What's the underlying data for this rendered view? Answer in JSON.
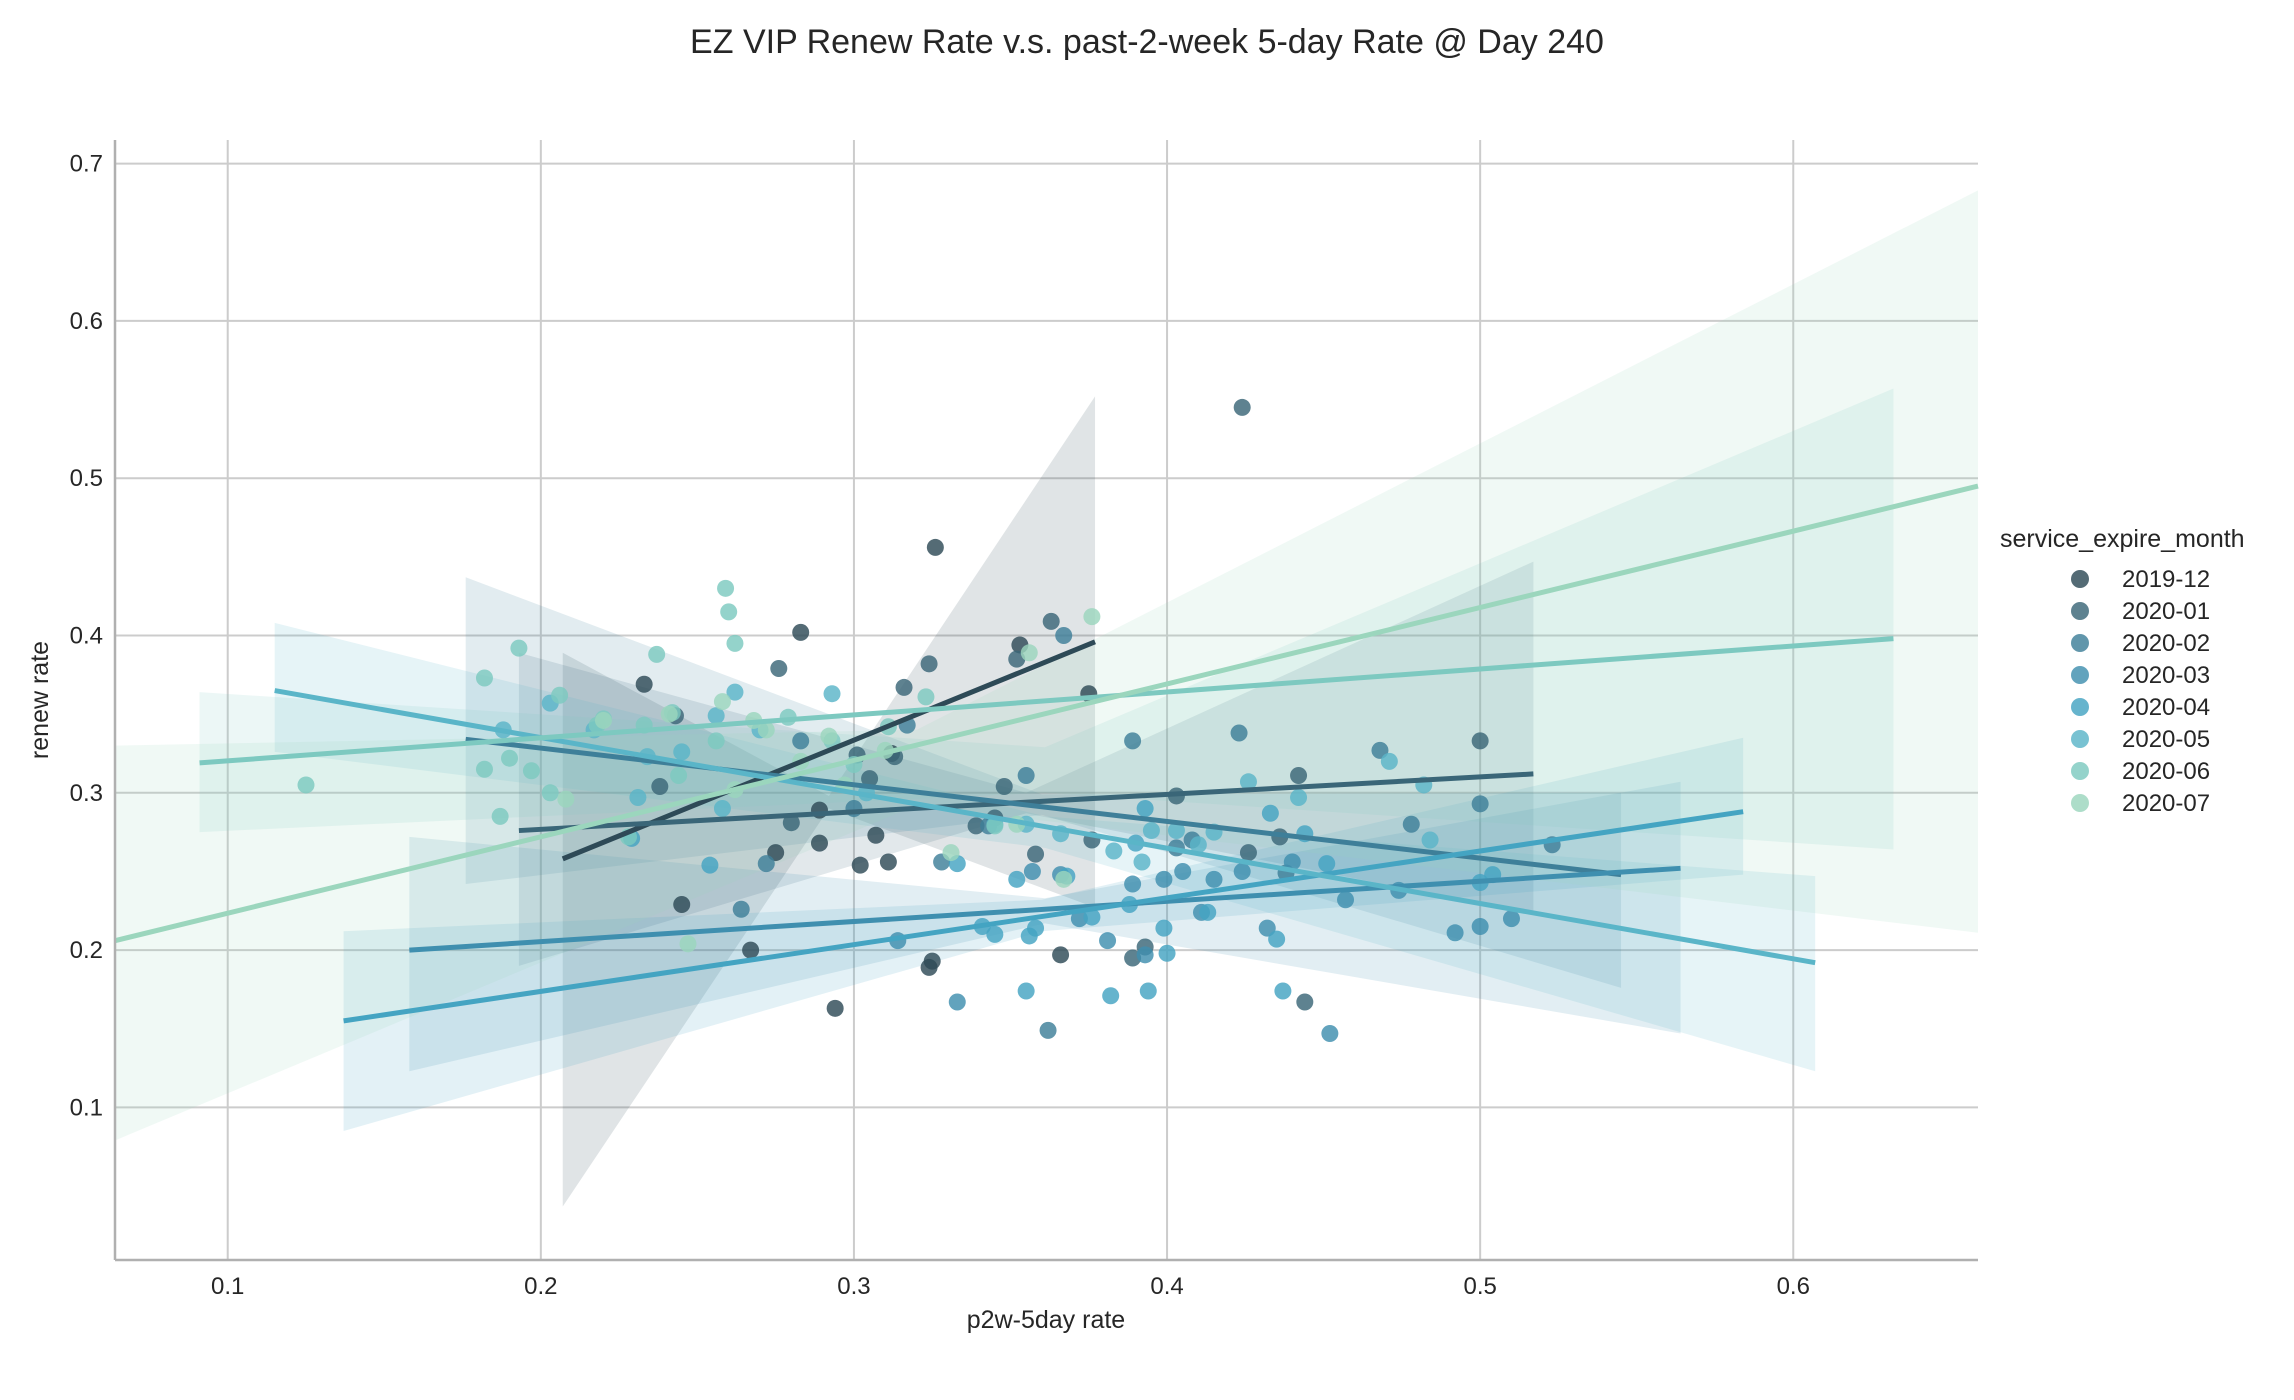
{
  "chart_data": {
    "type": "scatter",
    "title": "EZ VIP Renew Rate v.s. past-2-week 5-day Rate @ Day 240",
    "xlabel": "p2w-5day rate",
    "ylabel": "renew rate",
    "xlim": [
      0.064,
      0.659
    ],
    "ylim": [
      0.003,
      0.715
    ],
    "xticks": [
      "0.1",
      "0.2",
      "0.3",
      "0.4",
      "0.5",
      "0.6"
    ],
    "yticks": [
      "0.1",
      "0.2",
      "0.3",
      "0.4",
      "0.5",
      "0.6",
      "0.7"
    ],
    "grid": true,
    "legend": {
      "title": "service_expire_month",
      "position": "right"
    },
    "series": [
      {
        "name": "2019-12",
        "color": "#2e4a57",
        "points": [
          [
            0.233,
            0.369
          ],
          [
            0.245,
            0.229
          ],
          [
            0.267,
            0.2
          ],
          [
            0.275,
            0.262
          ],
          [
            0.283,
            0.402
          ],
          [
            0.289,
            0.289
          ],
          [
            0.289,
            0.268
          ],
          [
            0.294,
            0.163
          ],
          [
            0.302,
            0.254
          ],
          [
            0.307,
            0.273
          ],
          [
            0.311,
            0.256
          ],
          [
            0.312,
            0.325
          ],
          [
            0.324,
            0.189
          ],
          [
            0.325,
            0.193
          ],
          [
            0.326,
            0.456
          ],
          [
            0.353,
            0.394
          ],
          [
            0.366,
            0.197
          ],
          [
            0.375,
            0.363
          ]
        ],
        "fit": {
          "x": [
            0.207,
            0.377
          ],
          "y": [
            0.258,
            0.396
          ]
        },
        "ci": {
          "x": [
            0.207,
            0.292,
            0.377
          ],
          "lower": [
            0.037,
            0.29,
            0.227
          ],
          "upper": [
            0.389,
            0.298,
            0.552
          ]
        }
      },
      {
        "name": "2020-01",
        "color": "#3a6678",
        "points": [
          [
            0.238,
            0.304
          ],
          [
            0.243,
            0.349
          ],
          [
            0.276,
            0.379
          ],
          [
            0.28,
            0.281
          ],
          [
            0.301,
            0.324
          ],
          [
            0.305,
            0.309
          ],
          [
            0.313,
            0.323
          ],
          [
            0.316,
            0.367
          ],
          [
            0.324,
            0.382
          ],
          [
            0.339,
            0.279
          ],
          [
            0.345,
            0.284
          ],
          [
            0.348,
            0.304
          ],
          [
            0.352,
            0.385
          ],
          [
            0.358,
            0.261
          ],
          [
            0.363,
            0.409
          ],
          [
            0.376,
            0.27
          ],
          [
            0.389,
            0.195
          ],
          [
            0.393,
            0.202
          ],
          [
            0.403,
            0.298
          ],
          [
            0.424,
            0.545
          ],
          [
            0.426,
            0.262
          ],
          [
            0.436,
            0.272
          ],
          [
            0.442,
            0.311
          ],
          [
            0.444,
            0.167
          ],
          [
            0.5,
            0.333
          ]
        ],
        "fit": {
          "x": [
            0.193,
            0.517
          ],
          "y": [
            0.276,
            0.312
          ]
        },
        "ci": {
          "x": [
            0.193,
            0.355,
            0.517
          ],
          "lower": [
            0.19,
            0.287,
            0.223
          ],
          "upper": [
            0.389,
            0.3,
            0.447
          ]
        }
      },
      {
        "name": "2020-02",
        "color": "#3e7f99",
        "points": [
          [
            0.264,
            0.226
          ],
          [
            0.272,
            0.255
          ],
          [
            0.283,
            0.333
          ],
          [
            0.3,
            0.29
          ],
          [
            0.317,
            0.343
          ],
          [
            0.328,
            0.256
          ],
          [
            0.343,
            0.279
          ],
          [
            0.355,
            0.311
          ],
          [
            0.362,
            0.149
          ],
          [
            0.367,
            0.4
          ],
          [
            0.389,
            0.333
          ],
          [
            0.403,
            0.265
          ],
          [
            0.408,
            0.27
          ],
          [
            0.423,
            0.338
          ],
          [
            0.438,
            0.249
          ],
          [
            0.468,
            0.327
          ],
          [
            0.478,
            0.28
          ],
          [
            0.5,
            0.293
          ],
          [
            0.523,
            0.267
          ]
        ],
        "fit": {
          "x": [
            0.176,
            0.545
          ],
          "y": [
            0.334,
            0.248
          ]
        },
        "ci": {
          "x": [
            0.176,
            0.36,
            0.545
          ],
          "lower": [
            0.242,
            0.286,
            0.176
          ],
          "upper": [
            0.437,
            0.299,
            0.3
          ]
        }
      },
      {
        "name": "2020-03",
        "color": "#3f8faf",
        "points": [
          [
            0.314,
            0.206
          ],
          [
            0.333,
            0.167
          ],
          [
            0.357,
            0.25
          ],
          [
            0.366,
            0.248
          ],
          [
            0.372,
            0.22
          ],
          [
            0.381,
            0.206
          ],
          [
            0.389,
            0.242
          ],
          [
            0.393,
            0.197
          ],
          [
            0.399,
            0.245
          ],
          [
            0.405,
            0.25
          ],
          [
            0.411,
            0.224
          ],
          [
            0.415,
            0.245
          ],
          [
            0.424,
            0.25
          ],
          [
            0.432,
            0.214
          ],
          [
            0.44,
            0.256
          ],
          [
            0.452,
            0.147
          ],
          [
            0.457,
            0.232
          ],
          [
            0.474,
            0.238
          ],
          [
            0.492,
            0.211
          ],
          [
            0.5,
            0.215
          ],
          [
            0.51,
            0.22
          ]
        ],
        "fit": {
          "x": [
            0.158,
            0.564
          ],
          "y": [
            0.2,
            0.252
          ]
        },
        "ci": {
          "x": [
            0.158,
            0.361,
            0.564
          ],
          "lower": [
            0.123,
            0.217,
            0.147
          ],
          "upper": [
            0.272,
            0.233,
            0.307
          ]
        }
      },
      {
        "name": "2020-04",
        "color": "#44a4c2",
        "points": [
          [
            0.229,
            0.271
          ],
          [
            0.254,
            0.254
          ],
          [
            0.333,
            0.255
          ],
          [
            0.341,
            0.215
          ],
          [
            0.345,
            0.21
          ],
          [
            0.352,
            0.245
          ],
          [
            0.355,
            0.174
          ],
          [
            0.356,
            0.209
          ],
          [
            0.358,
            0.214
          ],
          [
            0.368,
            0.247
          ],
          [
            0.376,
            0.221
          ],
          [
            0.382,
            0.171
          ],
          [
            0.388,
            0.229
          ],
          [
            0.39,
            0.268
          ],
          [
            0.393,
            0.29
          ],
          [
            0.394,
            0.174
          ],
          [
            0.399,
            0.214
          ],
          [
            0.4,
            0.198
          ],
          [
            0.413,
            0.224
          ],
          [
            0.433,
            0.287
          ],
          [
            0.435,
            0.207
          ],
          [
            0.437,
            0.174
          ],
          [
            0.444,
            0.274
          ],
          [
            0.451,
            0.255
          ],
          [
            0.5,
            0.243
          ],
          [
            0.504,
            0.248
          ]
        ],
        "fit": {
          "x": [
            0.137,
            0.584
          ],
          "y": [
            0.155,
            0.288
          ]
        },
        "ci": {
          "x": [
            0.137,
            0.36,
            0.584
          ],
          "lower": [
            0.085,
            0.212,
            0.248
          ],
          "upper": [
            0.212,
            0.232,
            0.335
          ]
        }
      },
      {
        "name": "2020-05",
        "color": "#5ab5c8",
        "points": [
          [
            0.188,
            0.34
          ],
          [
            0.203,
            0.357
          ],
          [
            0.217,
            0.34
          ],
          [
            0.231,
            0.297
          ],
          [
            0.234,
            0.323
          ],
          [
            0.245,
            0.326
          ],
          [
            0.256,
            0.349
          ],
          [
            0.258,
            0.29
          ],
          [
            0.262,
            0.364
          ],
          [
            0.27,
            0.34
          ],
          [
            0.293,
            0.363
          ],
          [
            0.304,
            0.3
          ],
          [
            0.345,
            0.28
          ],
          [
            0.355,
            0.28
          ],
          [
            0.366,
            0.274
          ],
          [
            0.383,
            0.263
          ],
          [
            0.392,
            0.256
          ],
          [
            0.395,
            0.276
          ],
          [
            0.403,
            0.276
          ],
          [
            0.41,
            0.267
          ],
          [
            0.415,
            0.275
          ],
          [
            0.426,
            0.307
          ],
          [
            0.442,
            0.297
          ],
          [
            0.471,
            0.32
          ],
          [
            0.482,
            0.305
          ],
          [
            0.484,
            0.27
          ]
        ],
        "fit": {
          "x": [
            0.115,
            0.607
          ],
          "y": [
            0.365,
            0.192
          ]
        },
        "ci": {
          "x": [
            0.115,
            0.361,
            0.607
          ],
          "lower": [
            0.326,
            0.265,
            0.123
          ],
          "upper": [
            0.408,
            0.285,
            0.247
          ]
        }
      },
      {
        "name": "2020-06",
        "color": "#7dc9c0",
        "points": [
          [
            0.125,
            0.305
          ],
          [
            0.182,
            0.373
          ],
          [
            0.182,
            0.315
          ],
          [
            0.187,
            0.285
          ],
          [
            0.19,
            0.322
          ],
          [
            0.193,
            0.392
          ],
          [
            0.197,
            0.314
          ],
          [
            0.203,
            0.3
          ],
          [
            0.206,
            0.362
          ],
          [
            0.218,
            0.343
          ],
          [
            0.22,
            0.347
          ],
          [
            0.228,
            0.272
          ],
          [
            0.233,
            0.343
          ],
          [
            0.237,
            0.388
          ],
          [
            0.242,
            0.351
          ],
          [
            0.244,
            0.311
          ],
          [
            0.256,
            0.333
          ],
          [
            0.259,
            0.43
          ],
          [
            0.26,
            0.415
          ],
          [
            0.262,
            0.395
          ],
          [
            0.279,
            0.348
          ],
          [
            0.293,
            0.333
          ],
          [
            0.3,
            0.318
          ],
          [
            0.311,
            0.342
          ],
          [
            0.323,
            0.361
          ],
          [
            0.345,
            0.279
          ]
        ],
        "fit": {
          "x": [
            0.091,
            0.632
          ],
          "y": [
            0.319,
            0.398
          ]
        },
        "ci": {
          "x": [
            0.091,
            0.361,
            0.632
          ],
          "lower": [
            0.275,
            0.3,
            0.264
          ],
          "upper": [
            0.364,
            0.329,
            0.557
          ]
        }
      },
      {
        "name": "2020-07",
        "color": "#9bd6bd",
        "points": [
          [
            0.208,
            0.296
          ],
          [
            0.22,
            0.346
          ],
          [
            0.241,
            0.35
          ],
          [
            0.247,
            0.204
          ],
          [
            0.258,
            0.358
          ],
          [
            0.262,
            0.302
          ],
          [
            0.268,
            0.346
          ],
          [
            0.272,
            0.34
          ],
          [
            0.283,
            0.32
          ],
          [
            0.292,
            0.336
          ],
          [
            0.297,
            0.305
          ],
          [
            0.31,
            0.327
          ],
          [
            0.331,
            0.262
          ],
          [
            0.352,
            0.28
          ],
          [
            0.356,
            0.389
          ],
          [
            0.367,
            0.245
          ],
          [
            0.376,
            0.412
          ]
        ],
        "fit": {
          "x": [
            0.064,
            0.659
          ],
          "y": [
            0.206,
            0.495
          ]
        },
        "ci": {
          "x": [
            0.064,
            0.32,
            0.659
          ],
          "lower": [
            0.079,
            0.292,
            0.211
          ],
          "upper": [
            0.33,
            0.34,
            0.683
          ]
        }
      }
    ]
  }
}
